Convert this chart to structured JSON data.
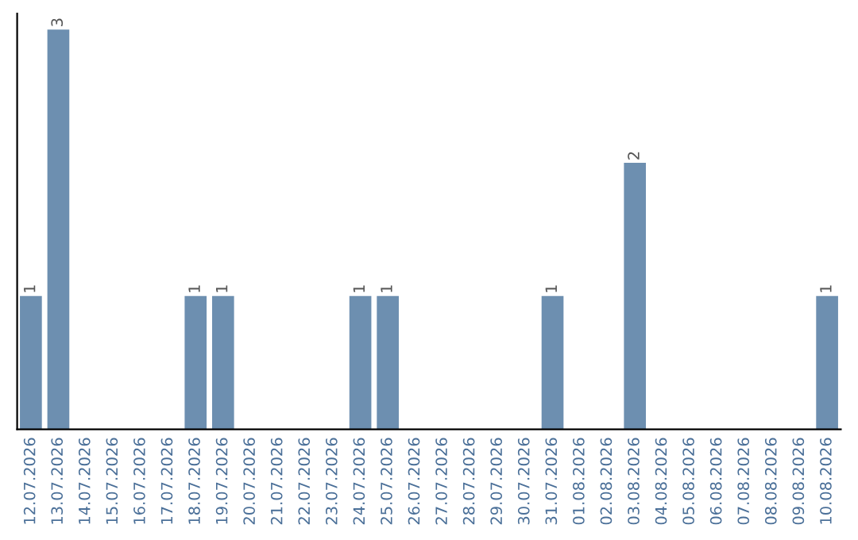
{
  "chart_data": {
    "type": "bar",
    "categories": [
      "12.07.2026",
      "13.07.2026",
      "14.07.2026",
      "15.07.2026",
      "16.07.2026",
      "17.07.2026",
      "18.07.2026",
      "19.07.2026",
      "20.07.2026",
      "21.07.2026",
      "22.07.2026",
      "23.07.2026",
      "24.07.2026",
      "25.07.2026",
      "26.07.2026",
      "27.07.2026",
      "28.07.2026",
      "29.07.2026",
      "30.07.2026",
      "31.07.2026",
      "01.08.2026",
      "02.08.2026",
      "03.08.2026",
      "04.08.2026",
      "05.08.2026",
      "06.08.2026",
      "07.08.2026",
      "08.08.2026",
      "09.08.2026",
      "10.08.2026"
    ],
    "values": [
      1,
      3,
      0,
      0,
      0,
      0,
      1,
      1,
      0,
      0,
      0,
      0,
      1,
      1,
      0,
      0,
      0,
      0,
      0,
      1,
      0,
      0,
      2,
      0,
      0,
      0,
      0,
      0,
      0,
      1
    ],
    "value_labels": [
      "1",
      "3",
      null,
      null,
      null,
      null,
      "1",
      "1",
      null,
      null,
      null,
      null,
      "1",
      "1",
      null,
      null,
      null,
      null,
      null,
      "1",
      null,
      null,
      "2",
      null,
      null,
      null,
      null,
      null,
      null,
      "1"
    ],
    "color": "#6d8fb0",
    "tick_labels": "x",
    "grid": false
  }
}
